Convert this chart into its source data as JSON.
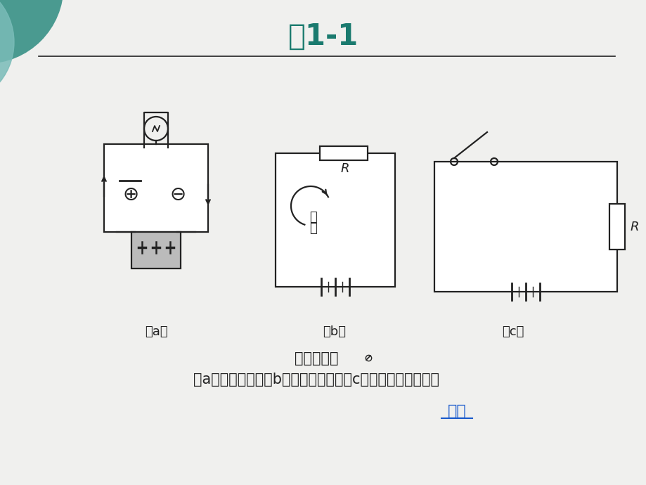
{
  "title": "图1-1",
  "title_color": "#1a7a6e",
  "title_fontsize": 30,
  "bg_color": "#f0f0ee",
  "line_color": "#222222",
  "caption_line1": "电路的概念",
  "caption_line2": "（a）实际电路；（b）电路的图示；（c）电路处在开路状态",
  "caption_fontsize": 15,
  "return_text": "返回",
  "return_color": "#1a5acc",
  "label_a": "（a）",
  "label_b": "（b）",
  "label_c": "（c）"
}
